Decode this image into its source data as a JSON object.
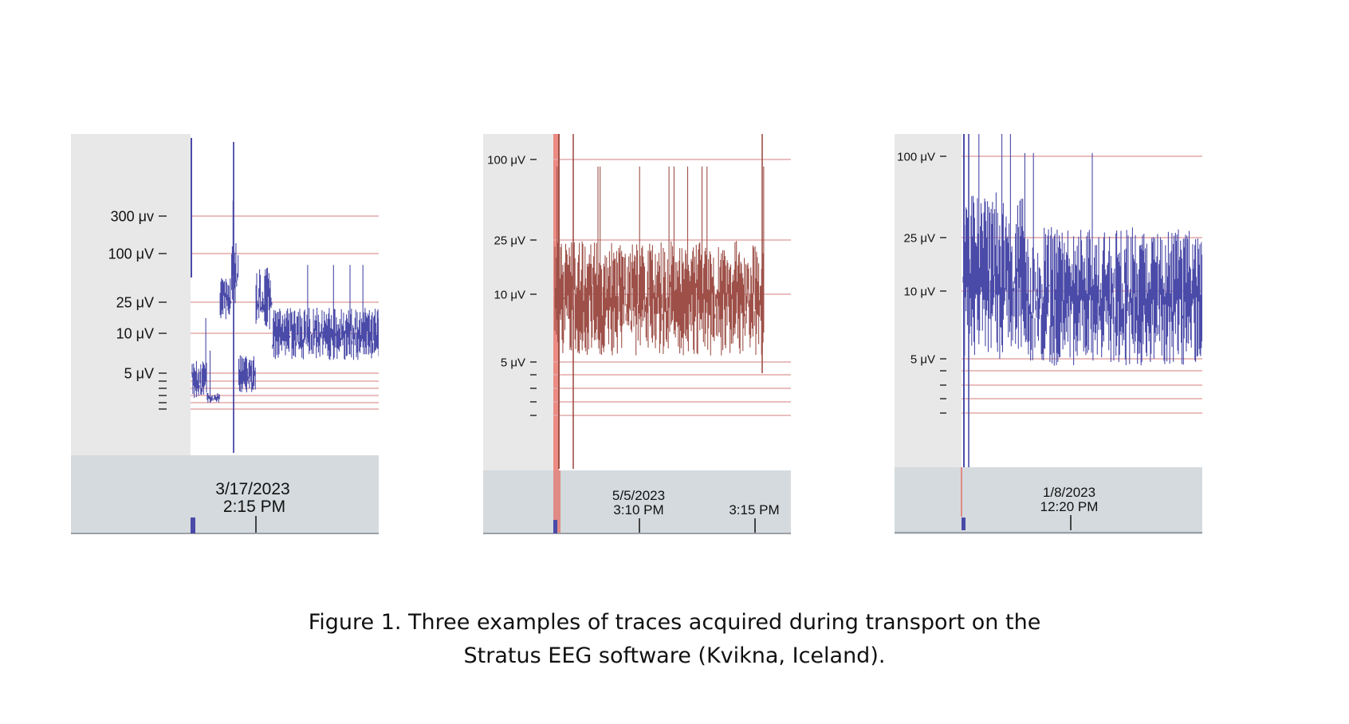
{
  "colors": {
    "trace_blue": "#4a4aa8",
    "trace_red": "#9e5048",
    "grid_line": "#e3a8a8",
    "axis_bg": "#e8e8e8",
    "time_bar_bg": "#d5dade",
    "marker_red": "#ec8a84"
  },
  "caption": {
    "line1": "Figure 1. Three examples of traces acquired during transport on the",
    "line2": "Stratus EEG software (Kvikna, Iceland)."
  },
  "chart_data": [
    {
      "type": "line",
      "title": "",
      "trace_color": "blue",
      "scale": "log",
      "y_labels": [
        "300 μv",
        "100 μV",
        "25 μV",
        "10 μV",
        "5 μV"
      ],
      "y_values": [
        300,
        100,
        25,
        10,
        5
      ],
      "date_label": "3/17/2023",
      "time_ticks": [
        "2:15 PM"
      ],
      "segments": [
        {
          "x_frac": [
            0.0,
            0.08
          ],
          "low": 2.5,
          "high": 7,
          "note": "start-dip"
        },
        {
          "x_frac": [
            0.08,
            0.15
          ],
          "low": 2.3,
          "high": 3,
          "note": "floor"
        },
        {
          "x_frac": [
            0.15,
            0.21
          ],
          "low": 20,
          "high": 60,
          "note": "rise"
        },
        {
          "x_frac": [
            0.21,
            0.25
          ],
          "low": 30,
          "high": 150,
          "note": "spike-1"
        },
        {
          "x_frac": [
            0.25,
            0.34
          ],
          "low": 3,
          "high": 8,
          "note": "drop"
        },
        {
          "x_frac": [
            0.34,
            0.43
          ],
          "low": 15,
          "high": 80,
          "note": "burst-2"
        },
        {
          "x_frac": [
            0.43,
            1.0
          ],
          "low": 7,
          "high": 28,
          "note": "plateau"
        }
      ]
    },
    {
      "type": "line",
      "title": "",
      "trace_color": "red",
      "scale": "log",
      "y_labels": [
        "100 μV",
        "25 μV",
        "10 μV",
        "5 μV"
      ],
      "y_values": [
        100,
        25,
        10,
        5
      ],
      "date_label": "5/5/2023",
      "time_ticks": [
        "3:10 PM",
        "3:15 PM"
      ],
      "segments": [
        {
          "x_frac": [
            0.0,
            1.0
          ],
          "low": 5.5,
          "high": 30,
          "note": "steady-noise"
        }
      ]
    },
    {
      "type": "line",
      "title": "",
      "trace_color": "blue",
      "scale": "log",
      "y_labels": [
        "100 μV",
        "25 μV",
        "10 μV",
        "5 μV"
      ],
      "y_values": [
        100,
        25,
        10,
        5
      ],
      "date_label": "1/8/2023",
      "time_ticks": [
        "12:20 PM"
      ],
      "segments": [
        {
          "x_frac": [
            0.0,
            0.25
          ],
          "low": 5,
          "high": 60,
          "note": "initial-burst"
        },
        {
          "x_frac": [
            0.25,
            1.0
          ],
          "low": 4.5,
          "high": 35,
          "note": "dense-noise"
        }
      ]
    }
  ]
}
